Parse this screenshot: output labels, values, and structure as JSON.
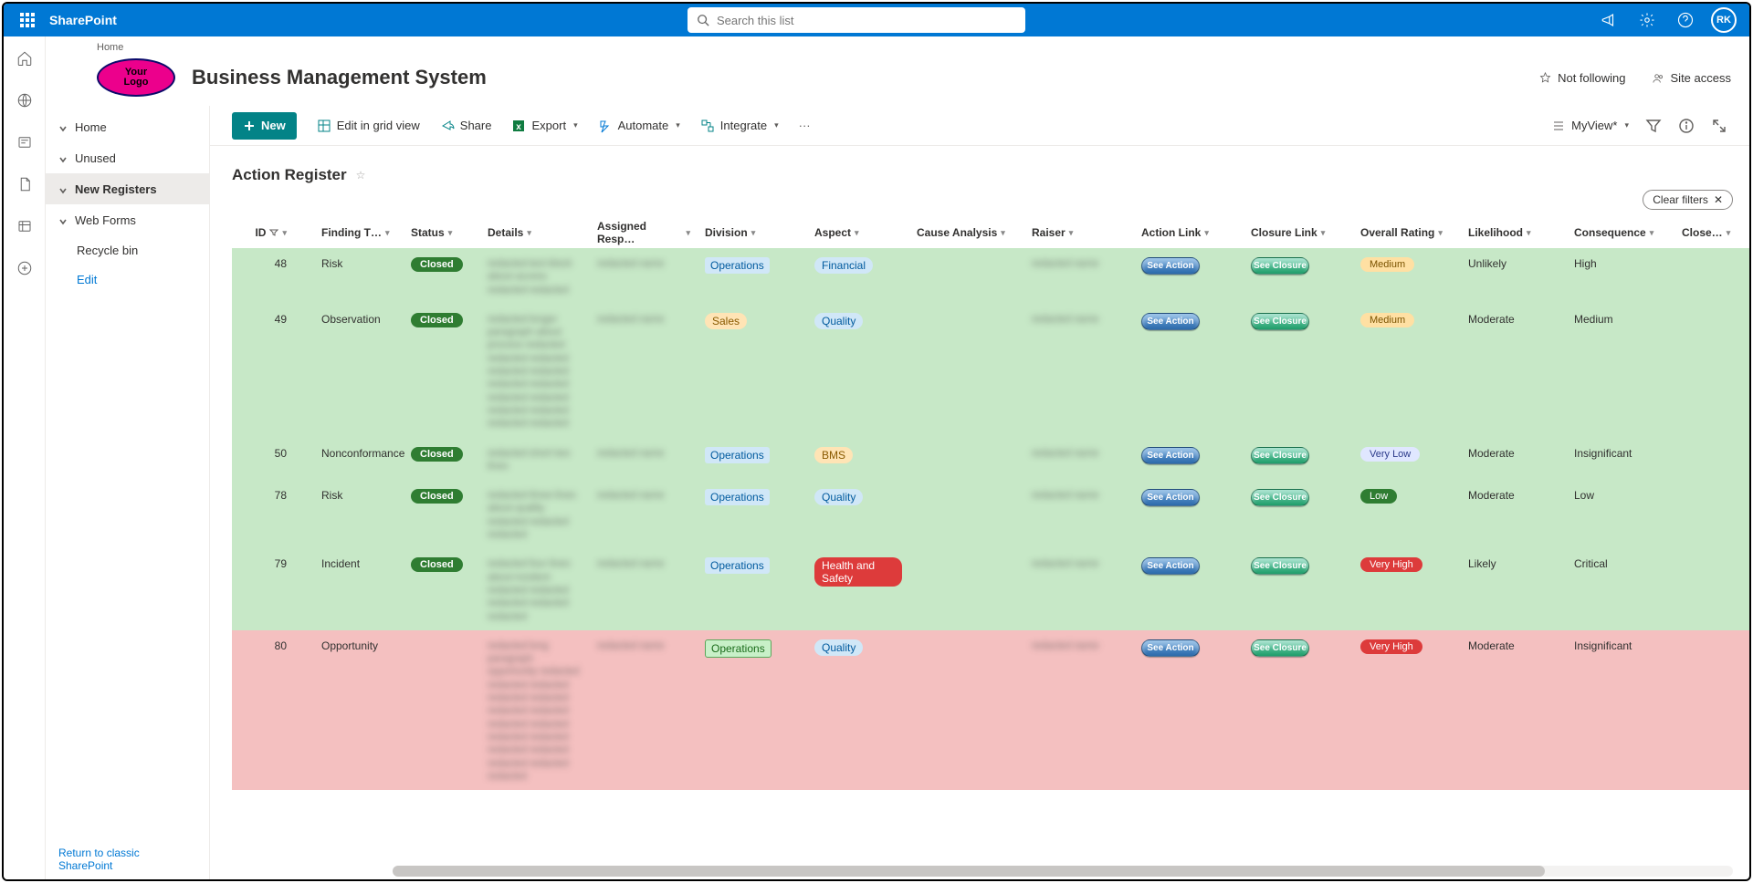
{
  "suite": {
    "app": "SharePoint",
    "search_placeholder": "Search this list",
    "avatar": "RK"
  },
  "crumb": "Home",
  "site": {
    "logo_line1": "Your",
    "logo_line2": "Logo",
    "title": "Business Management System",
    "not_following": "Not following",
    "site_access": "Site access"
  },
  "nav": {
    "items": [
      "Home",
      "Unused",
      "New Registers",
      "Web Forms"
    ],
    "recycle": "Recycle bin",
    "edit": "Edit",
    "footer": "Return to classic SharePoint"
  },
  "cmd": {
    "new": "New",
    "grid": "Edit in grid view",
    "share": "Share",
    "export": "Export",
    "automate": "Automate",
    "integrate": "Integrate",
    "view": "MyView*"
  },
  "list": {
    "title": "Action Register",
    "clear_filters": "Clear filters"
  },
  "columns": [
    "ID",
    "Finding T…",
    "Status",
    "Details",
    "Assigned Resp…",
    "Division",
    "Aspect",
    "Cause Analysis",
    "Raiser",
    "Action Link",
    "Closure Link",
    "Overall Rating",
    "Likelihood",
    "Consequence",
    "Close…"
  ],
  "action_label": "See Action",
  "closure_label": "See Closure",
  "rows": [
    {
      "row_bg": "green",
      "id": "48",
      "finding": "Risk",
      "status": "Closed",
      "details": "redacted text block about access redacted redacted",
      "resp": "blur",
      "division": "Operations",
      "div_style": "pill-div",
      "aspect": "Financial",
      "asp_style": "pill-asp",
      "raiser": "blur",
      "rating": "Medium",
      "rate_style": "rate-med",
      "likelihood": "Unlikely",
      "consequence": "High"
    },
    {
      "row_bg": "green",
      "id": "49",
      "finding": "Observation",
      "status": "Closed",
      "details": "redacted longer paragraph about process redacted redacted redacted redacted redacted redacted redacted redacted redacted redacted redacted redacted redacted",
      "resp": "blur",
      "division": "Sales",
      "div_style": "pill-asp-orange",
      "aspect": "Quality",
      "asp_style": "pill-asp",
      "raiser": "blur",
      "rating": "Medium",
      "rate_style": "rate-med",
      "likelihood": "Moderate",
      "consequence": "Medium"
    },
    {
      "row_bg": "green",
      "id": "50",
      "finding": "Nonconformance",
      "status": "Closed",
      "details": "redacted short two lines",
      "resp": "blur",
      "division": "Operations",
      "div_style": "pill-div",
      "aspect": "BMS",
      "asp_style": "pill-asp-orange",
      "raiser": "blur",
      "rating": "Very Low",
      "rate_style": "rate-vlow",
      "likelihood": "Moderate",
      "consequence": "Insignificant"
    },
    {
      "row_bg": "green",
      "id": "78",
      "finding": "Risk",
      "status": "Closed",
      "details": "redacted three lines about quality redacted redacted redacted",
      "resp": "blur",
      "division": "Operations",
      "div_style": "pill-div",
      "aspect": "Quality",
      "asp_style": "pill-asp",
      "raiser": "blur",
      "rating": "Low",
      "rate_style": "rate-low",
      "likelihood": "Moderate",
      "consequence": "Low"
    },
    {
      "row_bg": "green",
      "id": "79",
      "finding": "Incident",
      "status": "Closed",
      "details": "redacted four lines about incident redacted redacted redacted redacted redacted",
      "resp": "blur",
      "division": "Operations",
      "div_style": "pill-div",
      "aspect": "Health and Safety",
      "asp_style": "pill-asp-red",
      "raiser": "blur",
      "rating": "Very High",
      "rate_style": "rate-vhigh",
      "likelihood": "Likely",
      "consequence": "Critical"
    },
    {
      "row_bg": "pink",
      "id": "80",
      "finding": "Opportunity",
      "status": "",
      "details": "redacted long paragraph opportunity redacted redacted redacted redacted redacted redacted redacted redacted redacted redacted redacted redacted redacted redacted redacted redacted",
      "resp": "blur",
      "division": "Operations",
      "div_style": "pill-div-green",
      "aspect": "Quality",
      "asp_style": "pill-asp",
      "raiser": "blur",
      "rating": "Very High",
      "rate_style": "rate-vhigh",
      "likelihood": "Moderate",
      "consequence": "Insignificant"
    }
  ]
}
